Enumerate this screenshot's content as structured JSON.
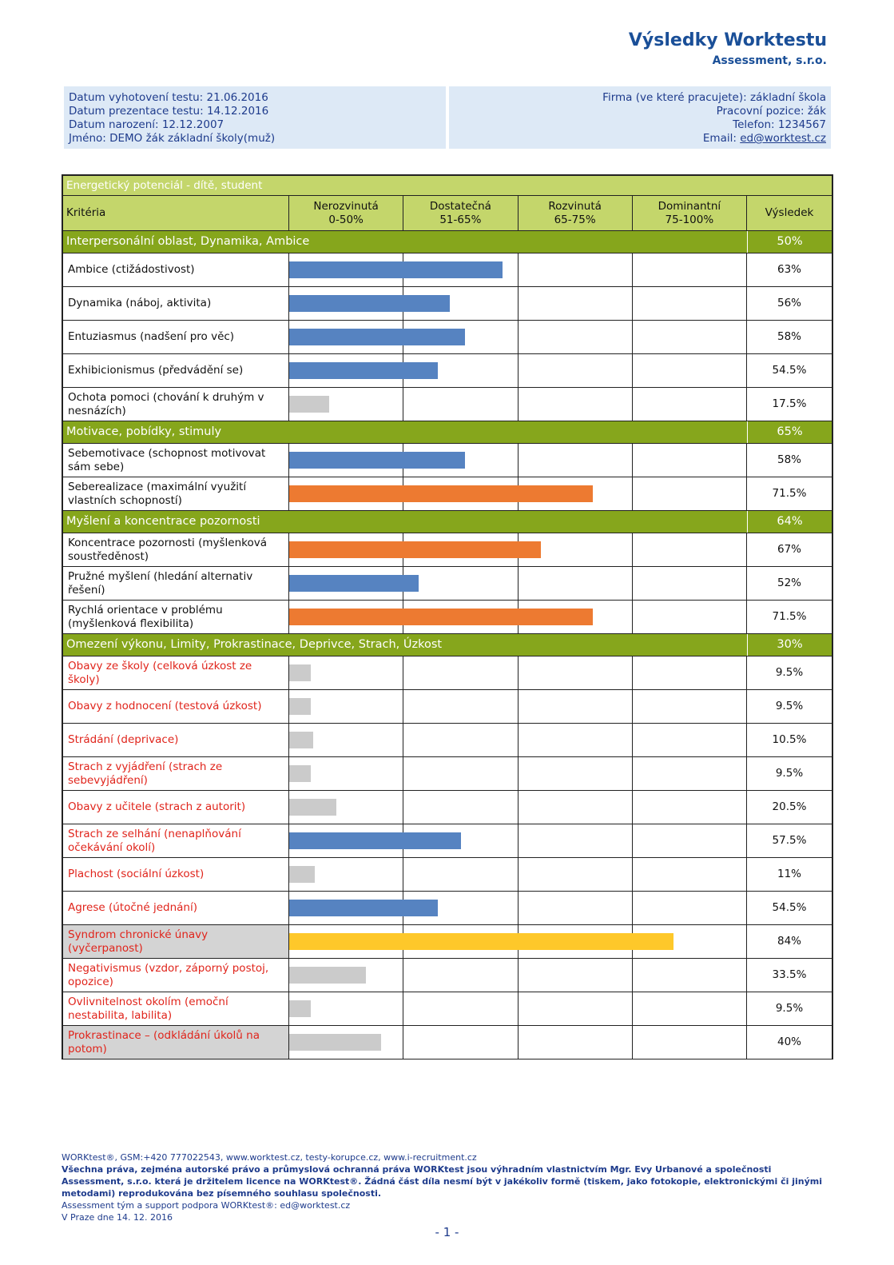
{
  "header": {
    "title": "Výsledky Worktestu",
    "company": "Assessment, s.r.o."
  },
  "info": {
    "left": [
      "Datum vyhotovení testu: 21.06.2016",
      "Datum prezentace testu: 14.12.2016",
      "Datum narození: 12.12.2007",
      "Jméno: DEMO žák základní školy(muž)"
    ],
    "right": [
      "Firma (ve které pracujete): základní škola",
      "Pracovní pozice: žák",
      "Telefon: 1234567"
    ],
    "email_label": "Email:",
    "email": "ed@worktest.cz"
  },
  "table": {
    "title": "Energetický potenciál - dítě, student",
    "criteria_label": "Kritéria",
    "levels": [
      {
        "name": "Nerozvinutá",
        "range": "0-50%"
      },
      {
        "name": "Dostatečná",
        "range": "51-65%"
      },
      {
        "name": "Rozvinutá",
        "range": "65-75%"
      },
      {
        "name": "Dominantní",
        "range": "75-100%"
      }
    ],
    "result_label": "Výsledek",
    "bar_scale": [
      0,
      50,
      65,
      75,
      100
    ],
    "groups": [
      {
        "name": "Interpersonální oblast, Dynamika, Ambice",
        "value": 50,
        "value_label": "50%",
        "items": [
          {
            "name": "Ambice (ctižádostivost)",
            "value": 63,
            "value_label": "63%",
            "color": "#5683c1"
          },
          {
            "name": "Dynamika (náboj, aktivita)",
            "value": 56,
            "value_label": "56%",
            "color": "#5683c1"
          },
          {
            "name": "Entuziasmus (nadšení pro věc)",
            "value": 58,
            "value_label": "58%",
            "color": "#5683c1"
          },
          {
            "name": "Exhibicionismus (předvádění se)",
            "value": 54.5,
            "value_label": "54.5%",
            "color": "#5683c1"
          },
          {
            "name": "Ochota pomoci (chování k druhým v nesnázích)",
            "value": 17.5,
            "value_label": "17.5%",
            "color": "#cbcbcb"
          }
        ]
      },
      {
        "name": "Motivace, pobídky, stimuly",
        "value": 65,
        "value_label": "65%",
        "items": [
          {
            "name": "Sebemotivace (schopnost motivovat sám sebe)",
            "value": 58,
            "value_label": "58%",
            "color": "#5683c1"
          },
          {
            "name": "Seberealizace (maximální využití vlastních schopností)",
            "value": 71.5,
            "value_label": "71.5%",
            "color": "#ed7a31"
          }
        ]
      },
      {
        "name": "Myšlení a koncentrace pozornosti",
        "value": 64,
        "value_label": "64%",
        "items": [
          {
            "name": "Koncentrace pozornosti (myšlenková soustředěnost)",
            "value": 67,
            "value_label": "67%",
            "color": "#ed7a31"
          },
          {
            "name": "Pružné myšlení (hledání alternativ řešení)",
            "value": 52,
            "value_label": "52%",
            "color": "#5683c1"
          },
          {
            "name": "Rychlá orientace v problému (myšlenková flexibilita)",
            "value": 71.5,
            "value_label": "71.5%",
            "color": "#ed7a31"
          }
        ]
      },
      {
        "name": "Omezení výkonu, Limity, Prokrastinace, Deprivce, Strach, Úzkost",
        "value": 30,
        "value_label": "30%",
        "warning": true,
        "items": [
          {
            "name": "Obavy ze školy (celková úzkost ze školy)",
            "value": 9.5,
            "value_label": "9.5%",
            "color": "#cbcbcb"
          },
          {
            "name": "Obavy z hodnocení (testová úzkost)",
            "value": 9.5,
            "value_label": "9.5%",
            "color": "#cbcbcb"
          },
          {
            "name": "Strádání (deprivace)",
            "value": 10.5,
            "value_label": "10.5%",
            "color": "#cbcbcb"
          },
          {
            "name": "Strach z vyjádření (strach ze sebevyjádření)",
            "value": 9.5,
            "value_label": "9.5%",
            "color": "#cbcbcb"
          },
          {
            "name": "Obavy z učitele (strach z autorit)",
            "value": 20.5,
            "value_label": "20.5%",
            "color": "#cbcbcb"
          },
          {
            "name": "Strach ze selhání (nenaplňování očekávání okolí)",
            "value": 57.5,
            "value_label": "57.5%",
            "color": "#5683c1"
          },
          {
            "name": "Plachost (sociální úzkost)",
            "value": 11,
            "value_label": "11%",
            "color": "#cbcbcb"
          },
          {
            "name": "Agrese (útočné jednání)",
            "value": 54.5,
            "value_label": "54.5%",
            "color": "#5683c1"
          },
          {
            "name": "Syndrom chronické únavy (vyčerpanost)",
            "value": 84,
            "value_label": "84%",
            "color": "#fec82a",
            "highlight": true
          },
          {
            "name": "Negativismus (vzdor, záporný postoj, opozice)",
            "value": 33.5,
            "value_label": "33.5%",
            "color": "#cbcbcb"
          },
          {
            "name": "Ovlivnitelnost okolím (emoční nestabilita, labilita)",
            "value": 9.5,
            "value_label": "9.5%",
            "color": "#cbcbcb"
          },
          {
            "name": "Prokrastinace – (odkládání úkolů na potom)",
            "value": 40,
            "value_label": "40%",
            "color": "#cbcbcb",
            "highlight": true
          }
        ]
      }
    ]
  },
  "footer": {
    "contact": "WORKtest®, GSM:+420 777022543, www.worktest.cz, testy-korupce.cz, www.i-recruitment.cz",
    "rights": "Všechna práva, zejména autorské právo a průmyslová ochranná práva WORKtest jsou výhradním vlastnictvím Mgr. Evy Urbanové a společnosti Assessment, s.r.o. která je držitelem licence na WORKtest®. Žádná část díla nesmí být v jakékoliv formě (tiskem, jako fotokopie, elektronickými či jinými metodami) reprodukována bez písemného souhlasu společnosti.",
    "support": "Assessment tým a support podpora WORKtest®: ed@worktest.cz",
    "place_date": "V Praze dne 14. 12. 2016",
    "page": "- 1 -"
  }
}
